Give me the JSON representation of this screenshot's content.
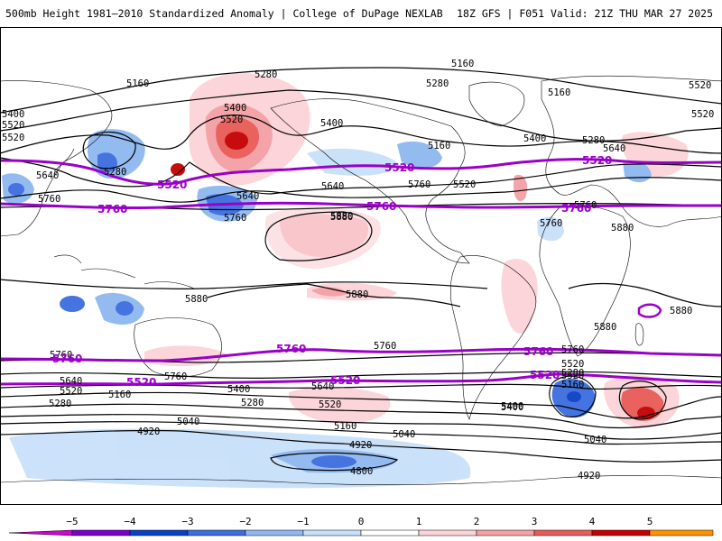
{
  "header": {
    "left": "500mb Height 1981–2010 Standardized Anomaly | College of DuPage NEXLAB",
    "right": "18Z GFS | F051 Valid: 21Z THU MAR 27 2025"
  },
  "colorbar": {
    "ticks": [
      "−5",
      "−4",
      "−3",
      "−2",
      "−1",
      "0",
      "1",
      "2",
      "3",
      "4",
      "5"
    ],
    "colors": [
      "#d400d4",
      "#7b00c9",
      "#0a3fc6",
      "#3c6de0",
      "#8fb8f0",
      "#c8e0fa",
      "#ffffff",
      "#fbd3d8",
      "#f4a0a4",
      "#e85a56",
      "#c40000",
      "#ff9000",
      "#ffd000"
    ]
  },
  "map": {
    "highlight_contour_color": "#9a00c8",
    "contour_labels": [
      "5160",
      "5280",
      "5400",
      "5520",
      "5640",
      "5760",
      "5880",
      "5160",
      "5400",
      "5520",
      "5640",
      "5280",
      "5280",
      "5520",
      "5640",
      "5760",
      "5400",
      "5160",
      "5160",
      "5400",
      "5280",
      "5640",
      "5520",
      "5520",
      "5760",
      "5760",
      "5880",
      "5880",
      "5880",
      "5880",
      "5880",
      "5880",
      "5760",
      "5760",
      "5760",
      "5760",
      "5640",
      "5520",
      "5400",
      "5280",
      "5160",
      "5040",
      "4920",
      "5400",
      "5640",
      "5520",
      "5280",
      "5160",
      "5040",
      "4920",
      "4800",
      "5520",
      "5400",
      "5040",
      "4920",
      "5520",
      "5520",
      "5280",
      "5160",
      "5760"
    ],
    "highlight_labels": [
      "5520",
      "5520",
      "5520",
      "5760",
      "5760",
      "5760",
      "5760",
      "5760",
      "5760",
      "5520",
      "5520",
      "5520"
    ]
  }
}
